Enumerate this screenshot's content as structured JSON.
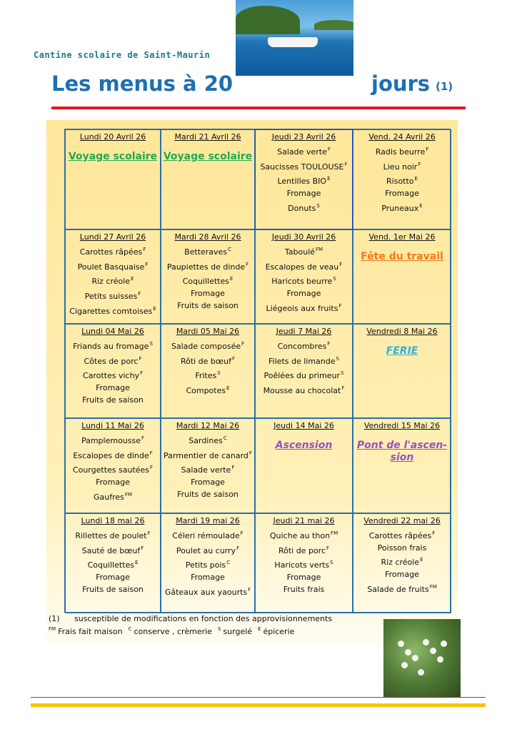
{
  "header": {
    "school": "Cantine scolaire de Saint-Maurin",
    "title_part1": "Les menus à 20",
    "title_part2": "jours",
    "title_note": "(1)"
  },
  "colors": {
    "title": "#1e6fb0",
    "rule": "#e8141c",
    "voyage": "#1faa4e",
    "fete": "#f07a1a",
    "ferie": "#2bb4e0",
    "ascension": "#9b4fc0"
  },
  "weeks": [
    [
      {
        "date": "Lundi 20 Avril 26",
        "special": "Voyage scolaire",
        "color": "#1faa4e"
      },
      {
        "date": "Mardi 21 Avril 26",
        "special": "Voyage scolaire",
        "color": "#1faa4e"
      },
      {
        "date": "Jeudi 23 Avril 26",
        "highlight": true,
        "items": [
          {
            "t": "Salade verte",
            "s": "F"
          },
          {
            "t": "Saucisses TOULOUSE",
            "s": "F"
          },
          {
            "t": "Lentilles BIO",
            "s": "E"
          },
          {
            "t": "Fromage",
            "s": ""
          },
          {
            "t": "Donuts",
            "s": "S"
          }
        ]
      },
      {
        "date": "Vend. 24 Avril 26",
        "items": [
          {
            "t": "Radis beurre",
            "s": "F"
          },
          {
            "t": "Lieu noir",
            "s": "F"
          },
          {
            "t": "Risotto",
            "s": "E"
          },
          {
            "t": "Fromage",
            "s": ""
          },
          {
            "t": "Pruneaux",
            "s": "E"
          }
        ]
      }
    ],
    [
      {
        "date": "Lundi 27 Avril 26",
        "items": [
          {
            "t": "Carottes râpées",
            "s": "F"
          },
          {
            "t": "Poulet Basquaise",
            "s": "F"
          },
          {
            "t": "Riz créole",
            "s": "E"
          },
          {
            "t": "Petits suisses",
            "s": "F"
          },
          {
            "t": "Cigarettes comtoises",
            "s": "E"
          }
        ]
      },
      {
        "date": "Mardi 28 Avril 26",
        "items": [
          {
            "t": "Betteraves",
            "s": "C"
          },
          {
            "t": "Paupiettes de dinde",
            "s": "F"
          },
          {
            "t": "Coquillettes",
            "s": "E"
          },
          {
            "t": "Fromage",
            "s": ""
          },
          {
            "t": "Fruits de saison",
            "s": ""
          }
        ]
      },
      {
        "date": "Jeudi 30 Avril 26",
        "items": [
          {
            "t": "Taboulé",
            "s": "FM"
          },
          {
            "t": "Escalopes de veau",
            "s": "F"
          },
          {
            "t": "Haricots beurre",
            "s": "S"
          },
          {
            "t": "Fromage",
            "s": ""
          },
          {
            "t": "Liégeois aux fruits",
            "s": "F"
          }
        ]
      },
      {
        "date": "Vend. 1er Mai  26",
        "special": "Fête du travail",
        "color": "#f07a1a"
      }
    ],
    [
      {
        "date": "Lundi 04 Mai 26",
        "items": [
          {
            "t": "Friands au fromage",
            "s": "S"
          },
          {
            "t": "Côtes de porc",
            "s": "F"
          },
          {
            "t": "Carottes vichy",
            "s": "F"
          },
          {
            "t": "Fromage",
            "s": ""
          },
          {
            "t": "Fruits de saison",
            "s": ""
          }
        ]
      },
      {
        "date": "Mardi 05 Mai 26",
        "items": [
          {
            "t": "Salade composée",
            "s": "F"
          },
          {
            "t": "Rôti de bœuf",
            "s": "F"
          },
          {
            "t": "Frites",
            "s": "S"
          },
          {
            "t": "Compotes",
            "s": "E"
          }
        ]
      },
      {
        "date": "Jeudi 7 Mai 26",
        "items": [
          {
            "t": "Concombres",
            "s": "F"
          },
          {
            "t": "Filets de limande",
            "s": "S"
          },
          {
            "t": "Poêlées du primeur",
            "s": "S"
          },
          {
            "t": "Mousse au chocolat",
            "s": "F"
          }
        ]
      },
      {
        "date": "Vendredi 8 Mai 26",
        "special": "FERIE",
        "color": "#2bb4e0"
      }
    ],
    [
      {
        "date": "Lundi 11 Mai 26",
        "items": [
          {
            "t": "Pamplemousse",
            "s": "F"
          },
          {
            "t": "Escalopes de dinde",
            "s": "F"
          },
          {
            "t": "Courgettes sautées",
            "s": "F"
          },
          {
            "t": "Fromage",
            "s": ""
          },
          {
            "t": "Gaufres",
            "s": "FM"
          }
        ]
      },
      {
        "date": "Mardi 12 Mai 26",
        "items": [
          {
            "t": "Sardines",
            "s": "C"
          },
          {
            "t": "Parmentier de canard",
            "s": "F"
          },
          {
            "t": "Salade verte",
            "s": "F"
          },
          {
            "t": "Fromage",
            "s": ""
          },
          {
            "t": "Fruits de saison",
            "s": ""
          }
        ]
      },
      {
        "date": "Jeudi 14 Mai 26",
        "special": "Ascension",
        "color": "#9b4fc0"
      },
      {
        "date": "Vendredi 15 Mai 26",
        "special": "Pont de l'ascen-sion",
        "color": "#9b4fc0"
      }
    ],
    [
      {
        "date": "Lundi 18 mai 26",
        "items": [
          {
            "t": "Rillettes de poulet",
            "s": "F"
          },
          {
            "t": "Sauté de bœuf",
            "s": "F"
          },
          {
            "t": "Coquillettes",
            "s": "E"
          },
          {
            "t": "Fromage",
            "s": ""
          },
          {
            "t": "Fruits de saison",
            "s": ""
          }
        ]
      },
      {
        "date": "Mardi 19 mai 26",
        "items": [
          {
            "t": "Céleri rémoulade",
            "s": "F"
          },
          {
            "t": "Poulet au curry",
            "s": "F"
          },
          {
            "t": "Petits pois",
            "s": "C"
          },
          {
            "t": "Fromage",
            "s": ""
          },
          {
            "t": "Gâteaux aux yaourts",
            "s": "F"
          }
        ]
      },
      {
        "date": "Jeudi  21 mai 26",
        "items": [
          {
            "t": "Quiche au thon",
            "s": "FM"
          },
          {
            "t": "Rôti de porc",
            "s": "F"
          },
          {
            "t": "Haricots verts",
            "s": "S"
          },
          {
            "t": "Fromage",
            "s": ""
          },
          {
            "t": "Fruits frais",
            "s": ""
          }
        ]
      },
      {
        "date": "Vendredi 22 mai 26",
        "items": [
          {
            "t": "Carottes râpées",
            "s": "F"
          },
          {
            "t": "Poisson frais",
            "s": ""
          },
          {
            "t": "Riz créole",
            "s": "E"
          },
          {
            "t": "Fromage",
            "s": ""
          },
          {
            "t": "Salade de fruits",
            "s": "FM"
          }
        ]
      }
    ]
  ],
  "footnotes": {
    "note_marker": "(1)",
    "note_text": "susceptible de modifications en fonction des approvisionnements",
    "legend": [
      {
        "s": "FM",
        "t": "Frais fait maison"
      },
      {
        "s": "C",
        "t": "conserve , crèmerie"
      },
      {
        "s": "S",
        "t": "surgelé"
      },
      {
        "s": "E",
        "t": "épicerie"
      }
    ]
  }
}
